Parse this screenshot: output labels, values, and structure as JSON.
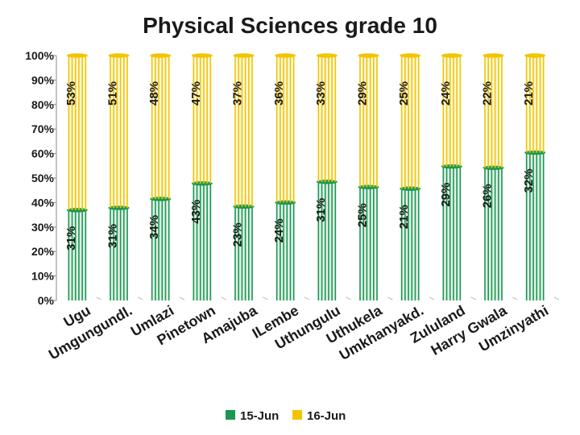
{
  "chart_data": {
    "type": "bar",
    "stacked": true,
    "title": "Physical Sciences grade 10",
    "categories": [
      "Ugu",
      "Umgungundl.",
      "Umlazi",
      "Pinetown",
      "Amajuba",
      "ILembe",
      "Uthungulu",
      "Uthukela",
      "Umkhanyakd.",
      "Zululand",
      "Harry Gwala",
      "Umzinyathi"
    ],
    "series": [
      {
        "name": "15-Jun",
        "color": "#1a9850",
        "values": [
          31,
          31,
          34,
          43,
          23,
          24,
          31,
          25,
          21,
          29,
          26,
          32
        ],
        "labels": [
          "31%",
          "31%",
          "34%",
          "43%",
          "23%",
          "24%",
          "31%",
          "25%",
          "21%",
          "29%",
          "26%",
          "32%"
        ]
      },
      {
        "name": "16-Jun",
        "color": "#f2c500",
        "values": [
          53,
          51,
          48,
          47,
          37,
          36,
          33,
          29,
          25,
          24,
          22,
          21
        ],
        "labels": [
          "53%",
          "51%",
          "48%",
          "47%",
          "37%",
          "36%",
          "33%",
          "29%",
          "25%",
          "24%",
          "22%",
          "21%"
        ]
      }
    ],
    "percent_of_total": true,
    "ylim": [
      0,
      100
    ],
    "yticks": [
      "0%",
      "10%",
      "20%",
      "30%",
      "40%",
      "50%",
      "60%",
      "70%",
      "80%",
      "90%",
      "100%"
    ],
    "legend_position": "bottom"
  }
}
